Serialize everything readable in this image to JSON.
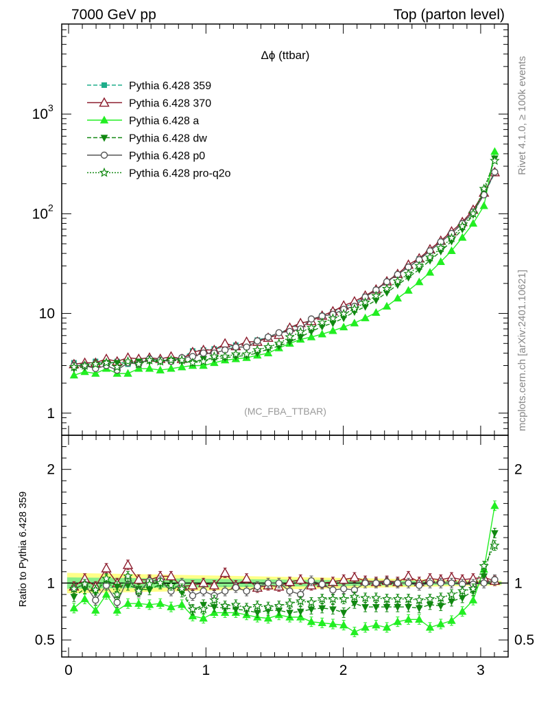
{
  "header": {
    "left": "7000 GeV pp",
    "right": "Top (parton level)"
  },
  "side_labels": {
    "rivet": "Rivet 4.1.0, ≥ 100k events",
    "mcplots": "mcplots.cern.ch [arXiv:2401.10621]"
  },
  "chart_data": [
    {
      "type": "line",
      "title": "Δϕ (ttbar)",
      "watermark": "(MC_FBA_TTBAR)",
      "yscale": "log",
      "xlim": [
        -0.05,
        3.2
      ],
      "ylim": [
        0.6,
        8000
      ],
      "x_ticks": [
        "0",
        "1",
        "2",
        "3"
      ],
      "y_ticks": [
        {
          "value": 1,
          "label": "1"
        },
        {
          "value": 10,
          "label": "10"
        },
        {
          "value": 100,
          "label": "10",
          "exp": "2"
        },
        {
          "value": 1000,
          "label": "10",
          "exp": "3"
        }
      ],
      "legend_position": "top-left",
      "x": [
        0.0393,
        0.1178,
        0.1963,
        0.2749,
        0.3534,
        0.432,
        0.5105,
        0.589,
        0.6676,
        0.7461,
        0.8247,
        0.9032,
        0.9817,
        1.0603,
        1.1388,
        1.2174,
        1.2959,
        1.3744,
        1.453,
        1.5315,
        1.6101,
        1.6886,
        1.7671,
        1.8457,
        1.9242,
        2.0028,
        2.0813,
        2.1598,
        2.2384,
        2.3169,
        2.3955,
        2.474,
        2.5525,
        2.6311,
        2.7096,
        2.7882,
        2.8667,
        2.9452,
        3.0238,
        3.1023
      ],
      "series": [
        {
          "name": "Pythia 6.428 359",
          "color": "#1dae8a",
          "dash": "6,3",
          "marker": "square",
          "marker_fill": "#1dae8a",
          "values": [
            3.2,
            3.0,
            3.3,
            3.1,
            3.3,
            3.1,
            3.4,
            3.5,
            3.3,
            3.5,
            3.6,
            4.2,
            4.3,
            4.4,
            4.6,
            4.8,
            5.0,
            5.4,
            5.8,
            6.3,
            7.1,
            7.8,
            8.6,
            9.5,
            10.4,
            11.6,
            12.6,
            14.8,
            17.2,
            20.6,
            24.6,
            29.1,
            35.2,
            42.4,
            52.0,
            63.6,
            80.2,
            105.4,
            155.2,
            255.0
          ]
        },
        {
          "name": "Pythia 6.428 370",
          "color": "#8b1a2b",
          "dash": "",
          "marker": "triangle-open",
          "marker_fill": "none",
          "values": [
            3.1,
            3.2,
            3.2,
            3.5,
            3.3,
            3.6,
            3.5,
            3.6,
            3.5,
            3.7,
            3.5,
            4.1,
            4.3,
            4.3,
            5.0,
            4.7,
            5.2,
            5.2,
            5.7,
            6.1,
            7.2,
            8.0,
            8.4,
            9.5,
            10.5,
            12.0,
            13.2,
            15.1,
            17.4,
            21.0,
            24.9,
            30.8,
            35.7,
            44.0,
            53.6,
            66.5,
            82.5,
            109.6,
            162.8,
            261.0
          ]
        },
        {
          "name": "Pythia 6.428 a",
          "color": "#22ee22",
          "dash": "",
          "marker": "triangle",
          "marker_fill": "#22ee22",
          "values": [
            2.4,
            2.6,
            2.5,
            2.8,
            2.5,
            2.5,
            2.8,
            2.8,
            2.7,
            2.8,
            2.9,
            3.0,
            3.0,
            3.2,
            3.4,
            3.5,
            3.6,
            3.8,
            4.0,
            4.5,
            5.0,
            5.5,
            5.8,
            6.2,
            6.7,
            7.3,
            8.0,
            9.0,
            10.2,
            11.8,
            14.2,
            17.0,
            20.7,
            25.8,
            33.0,
            42.5,
            57.8,
            80.0,
            120.0,
            420.0
          ]
        },
        {
          "name": "Pythia 6.428 dw",
          "color": "#118811",
          "dash": "6,3",
          "marker": "triangle-down",
          "marker_fill": "#118811",
          "values": [
            2.8,
            2.9,
            3.0,
            3.2,
            3.2,
            3.2,
            3.3,
            3.3,
            3.3,
            3.4,
            3.3,
            3.2,
            3.5,
            3.5,
            3.6,
            3.7,
            3.8,
            4.0,
            4.4,
            4.7,
            5.2,
            5.8,
            6.6,
            7.4,
            8.0,
            9.0,
            10.4,
            11.7,
            13.6,
            16.2,
            19.4,
            23.0,
            27.6,
            34.0,
            42.0,
            53.0,
            70.0,
            98.0,
            165.0,
            360.0
          ]
        },
        {
          "name": "Pythia 6.428 p0",
          "color": "#555555",
          "dash": "",
          "marker": "circle-open",
          "marker_fill": "none",
          "values": [
            3.0,
            3.0,
            2.8,
            3.0,
            2.7,
            3.2,
            3.1,
            3.5,
            3.4,
            3.3,
            3.6,
            3.7,
            4.0,
            4.0,
            4.3,
            4.6,
            4.6,
            5.3,
            5.8,
            6.4,
            6.6,
            7.0,
            8.8,
            9.4,
            9.8,
            11.0,
            11.8,
            14.6,
            17.2,
            20.8,
            24.6,
            29.2,
            34.6,
            42.4,
            52.2,
            63.4,
            79.6,
            104.4,
            154.8,
            262.0
          ]
        },
        {
          "name": "Pythia 6.428 pro-q2o",
          "color": "#118811",
          "dash": "2,2",
          "marker": "star",
          "marker_fill": "none",
          "values": [
            2.9,
            3.0,
            3.1,
            3.2,
            2.9,
            3.3,
            3.1,
            3.4,
            3.3,
            3.4,
            3.4,
            3.2,
            3.3,
            3.7,
            3.7,
            3.9,
            3.9,
            4.3,
            4.6,
            5.0,
            5.8,
            6.5,
            7.2,
            8.1,
            8.9,
            9.9,
            11.1,
            12.9,
            15.0,
            17.7,
            21.0,
            25.0,
            30.0,
            36.5,
            45.3,
            57.0,
            74.8,
            100.5,
            178.0,
            340.0
          ]
        }
      ]
    },
    {
      "type": "line",
      "ylabel": "Ratio to Pythia 6.428 359",
      "xlim": [
        -0.05,
        3.2
      ],
      "ylim": [
        0.35,
        2.3
      ],
      "x_ticks": [
        "0",
        "1",
        "2",
        "3"
      ],
      "y_ticks": [
        {
          "value": 0.5,
          "label": "0.5"
        },
        {
          "value": 1,
          "label": "1"
        },
        {
          "value": 2,
          "label": "2"
        }
      ],
      "bands": {
        "outer_color": "#ffff88",
        "inner_color": "#88ee88",
        "outer_halfwidth_start": 0.09,
        "outer_halfwidth_end": 0.02,
        "inner_halfwidth_start": 0.05,
        "inner_halfwidth_end": 0.012
      },
      "series": [
        {
          "name": "Pythia 6.428 370",
          "values": [
            0.97,
            1.04,
            0.97,
            1.13,
            1.0,
            1.16,
            1.03,
            1.03,
            1.06,
            1.06,
            0.97,
            0.98,
            1.0,
            0.98,
            1.09,
            0.98,
            1.04,
            0.96,
            0.98,
            0.97,
            1.01,
            1.03,
            0.98,
            1.0,
            1.01,
            1.03,
            1.05,
            1.02,
            1.01,
            1.02,
            1.01,
            1.06,
            1.01,
            1.04,
            1.03,
            1.05,
            1.03,
            1.04,
            1.05,
            1.02
          ]
        },
        {
          "name": "Pythia 6.428 a",
          "values": [
            0.78,
            0.86,
            0.76,
            0.9,
            0.76,
            0.82,
            0.82,
            0.81,
            0.82,
            0.79,
            0.81,
            0.71,
            0.69,
            0.74,
            0.74,
            0.74,
            0.72,
            0.7,
            0.69,
            0.72,
            0.7,
            0.7,
            0.66,
            0.65,
            0.64,
            0.63,
            0.57,
            0.61,
            0.63,
            0.61,
            0.66,
            0.68,
            0.68,
            0.61,
            0.64,
            0.67,
            0.75,
            0.85,
            1.12,
            1.68
          ]
        },
        {
          "name": "Pythia 6.428 dw",
          "values": [
            0.88,
            0.95,
            0.92,
            1.03,
            0.97,
            0.98,
            0.95,
            0.94,
            0.99,
            0.97,
            0.92,
            0.76,
            0.81,
            0.79,
            0.78,
            0.77,
            0.76,
            0.74,
            0.76,
            0.76,
            0.74,
            0.75,
            0.77,
            0.78,
            0.77,
            0.74,
            0.82,
            0.79,
            0.79,
            0.79,
            0.79,
            0.79,
            0.78,
            0.81,
            0.8,
            0.84,
            0.87,
            0.93,
            1.06,
            1.44
          ]
        },
        {
          "name": "Pythia 6.428 p0",
          "values": [
            0.95,
            0.99,
            0.85,
            0.98,
            0.83,
            1.04,
            0.92,
            1.02,
            1.02,
            0.93,
            1.0,
            0.89,
            0.93,
            0.89,
            0.93,
            0.96,
            0.93,
            0.97,
            1.0,
            1.0,
            0.93,
            0.9,
            1.02,
            0.99,
            0.94,
            0.95,
            0.94,
            1.0,
            1.0,
            1.01,
            1.0,
            1.0,
            0.98,
            1.0,
            1.0,
            1.0,
            0.99,
            0.99,
            1.0,
            1.03
          ]
        },
        {
          "name": "Pythia 6.428 pro-q2o",
          "values": [
            0.95,
            0.99,
            0.94,
            1.04,
            0.9,
            1.06,
            0.93,
            0.99,
            1.0,
            0.98,
            0.95,
            0.77,
            0.77,
            0.85,
            0.8,
            0.81,
            0.78,
            0.8,
            0.79,
            0.8,
            0.82,
            0.84,
            0.83,
            0.86,
            0.86,
            0.86,
            0.88,
            0.87,
            0.87,
            0.86,
            0.86,
            0.86,
            0.85,
            0.86,
            0.87,
            0.9,
            0.93,
            0.95,
            1.15,
            1.33
          ]
        }
      ]
    }
  ]
}
